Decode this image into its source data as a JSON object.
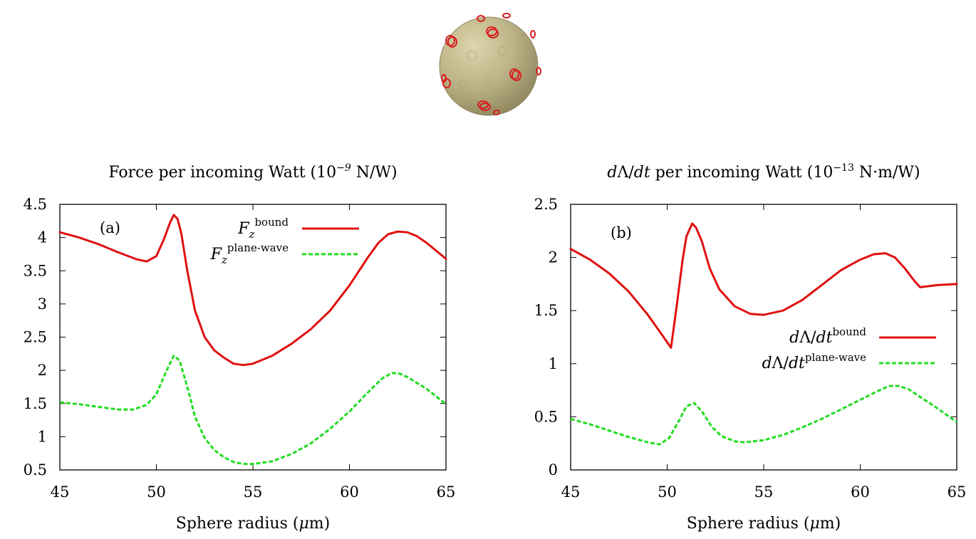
{
  "figure": {
    "illustration": "sphere-with-ring-particles-icon",
    "colors": {
      "sphere": "#b7ad84",
      "sphere_edge": "#8f875f",
      "rings": "#d81e1e",
      "bound": "#e01010",
      "plane_wave": "#22dd22",
      "axes": "#000000"
    }
  },
  "chart_data": [
    {
      "id": "a",
      "type": "line",
      "title": "Force per incoming Watt (10⁻⁹ N/W)",
      "panel_label": "(a)",
      "xlabel": "Sphere radius (μm)",
      "ylabel": "",
      "xlim": [
        45,
        65
      ],
      "ylim": [
        0.5,
        4.5
      ],
      "xticks": [
        45,
        50,
        55,
        60,
        65
      ],
      "yticks": [
        0.5,
        1,
        1.5,
        2,
        2.5,
        3,
        3.5,
        4,
        4.5
      ],
      "ytick_labels": [
        "0.5",
        "1",
        "1.5",
        "2",
        "2.5",
        "3",
        "3.5",
        "4",
        "4.5"
      ],
      "grid": false,
      "legend_position": "top-right",
      "series": [
        {
          "name_base": "F",
          "name_sub": "z",
          "name_sup": "bound",
          "color": "#e01010",
          "style": "solid",
          "points": [
            [
              45,
              4.08
            ],
            [
              46,
              4.0
            ],
            [
              47,
              3.9
            ],
            [
              48,
              3.78
            ],
            [
              49,
              3.67
            ],
            [
              49.5,
              3.64
            ],
            [
              50,
              3.72
            ],
            [
              50.4,
              3.98
            ],
            [
              50.7,
              4.22
            ],
            [
              50.9,
              4.34
            ],
            [
              51.1,
              4.28
            ],
            [
              51.3,
              4.05
            ],
            [
              51.6,
              3.5
            ],
            [
              52,
              2.9
            ],
            [
              52.5,
              2.5
            ],
            [
              53,
              2.3
            ],
            [
              53.5,
              2.19
            ],
            [
              54,
              2.1
            ],
            [
              54.5,
              2.08
            ],
            [
              55,
              2.1
            ],
            [
              56,
              2.22
            ],
            [
              57,
              2.4
            ],
            [
              58,
              2.62
            ],
            [
              59,
              2.9
            ],
            [
              60,
              3.28
            ],
            [
              61,
              3.72
            ],
            [
              61.5,
              3.92
            ],
            [
              62,
              4.05
            ],
            [
              62.5,
              4.09
            ],
            [
              63,
              4.08
            ],
            [
              63.5,
              4.02
            ],
            [
              64,
              3.92
            ],
            [
              64.5,
              3.8
            ],
            [
              65,
              3.68
            ]
          ]
        },
        {
          "name_base": "F",
          "name_sub": "z",
          "name_sup": "plane-wave",
          "color": "#22dd22",
          "style": "dashed",
          "points": [
            [
              45,
              1.52
            ],
            [
              46,
              1.49
            ],
            [
              47,
              1.45
            ],
            [
              48,
              1.41
            ],
            [
              48.8,
              1.41
            ],
            [
              49.5,
              1.48
            ],
            [
              50,
              1.64
            ],
            [
              50.5,
              1.98
            ],
            [
              50.9,
              2.22
            ],
            [
              51.2,
              2.15
            ],
            [
              51.6,
              1.75
            ],
            [
              52,
              1.3
            ],
            [
              52.5,
              0.98
            ],
            [
              53,
              0.8
            ],
            [
              53.5,
              0.69
            ],
            [
              54,
              0.62
            ],
            [
              54.5,
              0.59
            ],
            [
              55,
              0.59
            ],
            [
              56,
              0.63
            ],
            [
              57,
              0.74
            ],
            [
              58,
              0.9
            ],
            [
              59,
              1.12
            ],
            [
              60,
              1.38
            ],
            [
              61,
              1.68
            ],
            [
              61.7,
              1.88
            ],
            [
              62.2,
              1.96
            ],
            [
              62.6,
              1.95
            ],
            [
              63,
              1.9
            ],
            [
              64,
              1.72
            ],
            [
              65,
              1.49
            ]
          ]
        }
      ]
    },
    {
      "id": "b",
      "type": "line",
      "title": "dΛ/dt per incoming Watt (10⁻¹³ N·m/W)",
      "panel_label": "(b)",
      "xlabel": "Sphere radius (μm)",
      "ylabel": "",
      "xlim": [
        45,
        65
      ],
      "ylim": [
        0,
        2.5
      ],
      "xticks": [
        45,
        50,
        55,
        60,
        65
      ],
      "yticks": [
        0,
        0.5,
        1,
        1.5,
        2,
        2.5
      ],
      "ytick_labels": [
        "0",
        "0.5",
        "1",
        "1.5",
        "2",
        "2.5"
      ],
      "grid": false,
      "legend_position": "center-right",
      "series": [
        {
          "name_base": "dΛ/dt",
          "name_sub": "",
          "name_sup": "bound",
          "color": "#e01010",
          "style": "solid",
          "points": [
            [
              45,
              2.08
            ],
            [
              46,
              1.98
            ],
            [
              47,
              1.85
            ],
            [
              48,
              1.68
            ],
            [
              49,
              1.46
            ],
            [
              49.7,
              1.28
            ],
            [
              50.2,
              1.15
            ],
            [
              50.5,
              1.55
            ],
            [
              50.8,
              1.98
            ],
            [
              51,
              2.2
            ],
            [
              51.3,
              2.32
            ],
            [
              51.5,
              2.28
            ],
            [
              51.8,
              2.15
            ],
            [
              52.2,
              1.9
            ],
            [
              52.7,
              1.7
            ],
            [
              53.5,
              1.54
            ],
            [
              54.3,
              1.47
            ],
            [
              55,
              1.46
            ],
            [
              56,
              1.5
            ],
            [
              57,
              1.6
            ],
            [
              58,
              1.74
            ],
            [
              59,
              1.88
            ],
            [
              60,
              1.98
            ],
            [
              60.7,
              2.03
            ],
            [
              61.3,
              2.04
            ],
            [
              61.8,
              2.0
            ],
            [
              62.3,
              1.9
            ],
            [
              62.8,
              1.78
            ],
            [
              63.1,
              1.72
            ],
            [
              64,
              1.74
            ],
            [
              65,
              1.75
            ]
          ]
        },
        {
          "name_base": "dΛ/dt",
          "name_sub": "",
          "name_sup": "plane-wave",
          "color": "#22dd22",
          "style": "dashed",
          "points": [
            [
              45,
              0.48
            ],
            [
              46,
              0.43
            ],
            [
              47,
              0.37
            ],
            [
              48,
              0.31
            ],
            [
              49,
              0.26
            ],
            [
              49.6,
              0.24
            ],
            [
              50.1,
              0.3
            ],
            [
              50.6,
              0.46
            ],
            [
              51,
              0.6
            ],
            [
              51.4,
              0.63
            ],
            [
              51.8,
              0.55
            ],
            [
              52.3,
              0.41
            ],
            [
              52.8,
              0.32
            ],
            [
              53.5,
              0.27
            ],
            [
              54,
              0.26
            ],
            [
              55,
              0.28
            ],
            [
              56,
              0.33
            ],
            [
              57,
              0.4
            ],
            [
              58,
              0.48
            ],
            [
              59,
              0.57
            ],
            [
              60,
              0.66
            ],
            [
              61,
              0.75
            ],
            [
              61.5,
              0.79
            ],
            [
              62,
              0.79
            ],
            [
              62.5,
              0.76
            ],
            [
              63,
              0.7
            ],
            [
              64,
              0.58
            ],
            [
              65,
              0.45
            ]
          ]
        }
      ]
    }
  ]
}
